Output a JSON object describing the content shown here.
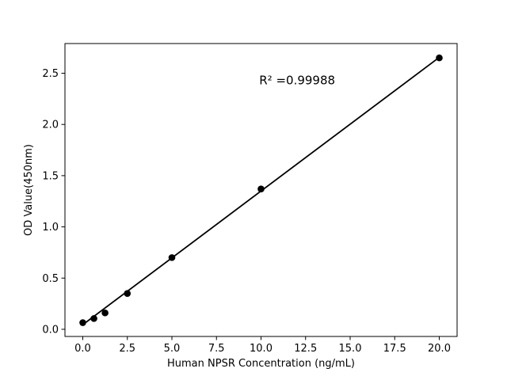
{
  "chart_data": {
    "type": "scatter",
    "title": "",
    "xlabel": "Human NPSR Concentration (ng/mL)",
    "ylabel": "OD Value(450nm)",
    "x": [
      0,
      0.625,
      1.25,
      2.5,
      5,
      10,
      20
    ],
    "y": [
      0.065,
      0.105,
      0.16,
      0.35,
      0.7,
      1.37,
      2.65
    ],
    "fit_line": {
      "x": [
        0,
        20
      ],
      "y": [
        0.045,
        2.655
      ]
    },
    "annotation": {
      "text": "R² =0.99988",
      "x": 9.9,
      "y": 2.43
    },
    "xlim": [
      -1,
      21
    ],
    "ylim": [
      -0.07,
      2.79
    ],
    "xticks": [
      0.0,
      2.5,
      5.0,
      7.5,
      10.0,
      12.5,
      15.0,
      17.5,
      20.0
    ],
    "xtick_labels": [
      "0.0",
      "2.5",
      "5.0",
      "7.5",
      "10.0",
      "12.5",
      "15.0",
      "17.5",
      "20.0"
    ],
    "yticks": [
      0.0,
      0.5,
      1.0,
      1.5,
      2.0,
      2.5
    ],
    "ytick_labels": [
      "0.0",
      "0.5",
      "1.0",
      "1.5",
      "2.0",
      "2.5"
    ],
    "grid": false,
    "legend": null,
    "marker_color": "#000000",
    "line_color": "#000000",
    "axis_color": "#000000",
    "background": "#ffffff"
  }
}
